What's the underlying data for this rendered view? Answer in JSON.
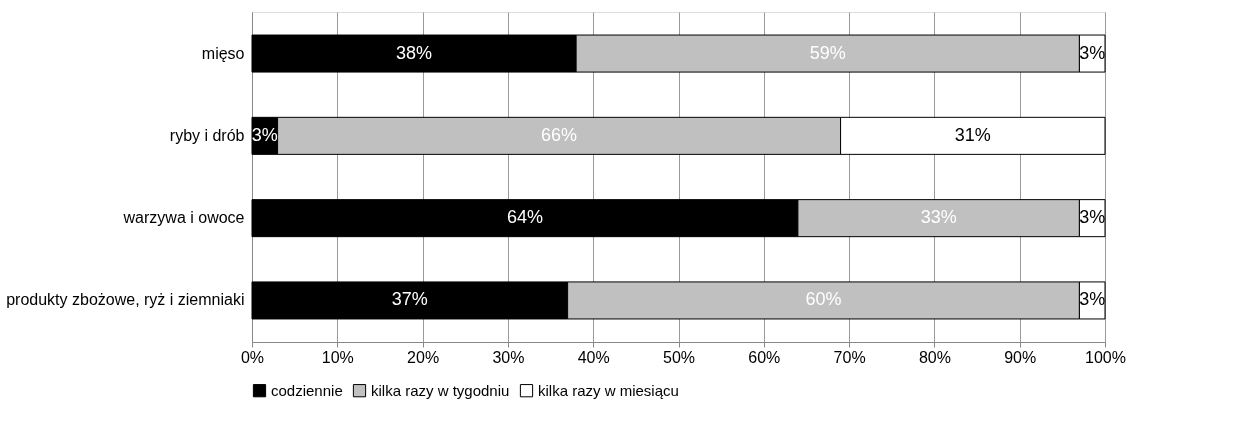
{
  "chart_data": {
    "type": "bar",
    "orientation": "horizontal",
    "stacked": true,
    "categories": [
      "mięso",
      "ryby i drób",
      "warzywa i owoce",
      "produkty zbożowe, ryż i ziemniaki"
    ],
    "series": [
      {
        "name": "codziennie",
        "color": "#000000",
        "values": [
          38,
          3,
          64,
          37
        ],
        "value_labels": [
          "38%",
          "3%",
          "64%",
          "37%"
        ]
      },
      {
        "name": "kilka razy w tygodniu",
        "color": "#c0c0c0",
        "values": [
          59,
          66,
          33,
          60
        ],
        "value_labels": [
          "59%",
          "66%",
          "33%",
          "60%"
        ]
      },
      {
        "name": "kilka razy w miesiącu",
        "color": "#ffffff",
        "values": [
          3,
          31,
          3,
          3
        ],
        "value_labels": [
          "3%",
          "31%",
          "3%",
          "3%"
        ]
      }
    ],
    "xlim": [
      0,
      100
    ],
    "xticks": [
      {
        "value": 0,
        "label": "0%"
      },
      {
        "value": 10,
        "label": "10%"
      },
      {
        "value": 20,
        "label": "20%"
      },
      {
        "value": 30,
        "label": "30%"
      },
      {
        "value": 40,
        "label": "40%"
      },
      {
        "value": 50,
        "label": "50%"
      },
      {
        "value": 60,
        "label": "60%"
      },
      {
        "value": 70,
        "label": "70%"
      },
      {
        "value": 80,
        "label": "80%"
      },
      {
        "value": 90,
        "label": "90%"
      },
      {
        "value": 100,
        "label": "100%"
      }
    ],
    "grid": "x",
    "legend": "bottom"
  }
}
